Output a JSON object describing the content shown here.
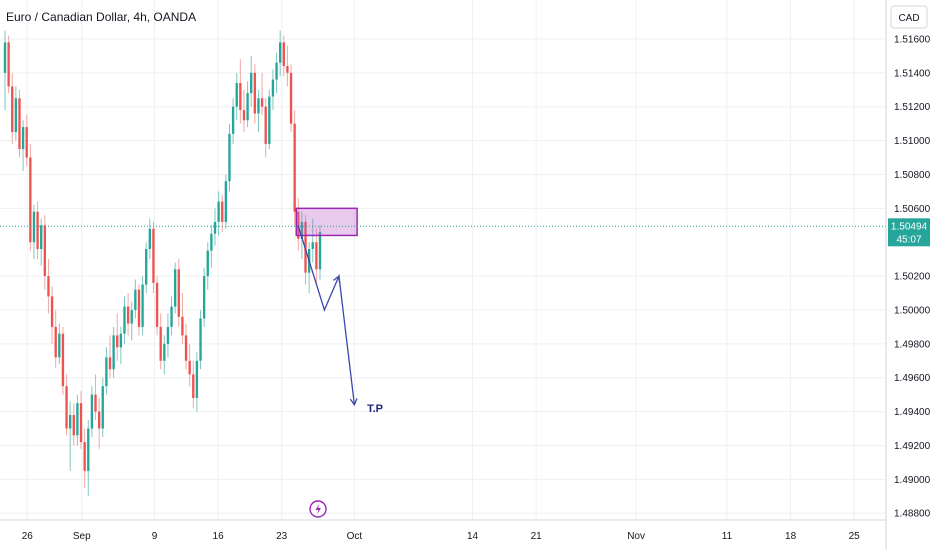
{
  "chart_data": {
    "type": "candlestick",
    "title": "Euro / Canadian Dollar, 4h, OANDA",
    "currency": "CAD",
    "x_ticks": [
      {
        "label": "26",
        "day": 26
      },
      {
        "label": "Sep",
        "day": 32
      },
      {
        "label": "9",
        "day": 40
      },
      {
        "label": "16",
        "day": 47
      },
      {
        "label": "23",
        "day": 54
      },
      {
        "label": "Oct",
        "day": 62
      },
      {
        "label": "14",
        "day": 75
      },
      {
        "label": "21",
        "day": 82
      },
      {
        "label": "Nov",
        "day": 93
      },
      {
        "label": "11",
        "day": 103
      },
      {
        "label": "18",
        "day": 110
      },
      {
        "label": "25",
        "day": 117
      }
    ],
    "y_ticks": [
      "1.51600",
      "1.51400",
      "1.51200",
      "1.51000",
      "1.50800",
      "1.50600",
      "1.50200",
      "1.50000",
      "1.49800",
      "1.49600",
      "1.49400",
      "1.49200",
      "1.49000",
      "1.48800"
    ],
    "ylim": [
      1.4876,
      1.5183
    ],
    "xlim_days": [
      23,
      120.5
    ],
    "current_price": {
      "value": "1.50494",
      "countdown": "45:07"
    },
    "colors": {
      "up": "#26a69a",
      "down": "#ef5350",
      "wick_up": "#7fc8bf",
      "wick_down": "#f2a7a5",
      "zone": "#9c27b0",
      "arrow": "#3949ab",
      "current": "#26a69a"
    },
    "price_path": [
      [
        1.514,
        1.5165,
        1.5118,
        1.5158
      ],
      [
        1.5158,
        1.5162,
        1.5128,
        1.5132
      ],
      [
        1.5132,
        1.514,
        1.5098,
        1.5105
      ],
      [
        1.5105,
        1.5132,
        1.51,
        1.5125
      ],
      [
        1.5125,
        1.513,
        1.509,
        1.5095
      ],
      [
        1.5095,
        1.5112,
        1.5082,
        1.5108
      ],
      [
        1.5108,
        1.5115,
        1.5085,
        1.509
      ],
      [
        1.509,
        1.5098,
        1.5035,
        1.504
      ],
      [
        1.504,
        1.5062,
        1.503,
        1.5058
      ],
      [
        1.5058,
        1.5064,
        1.503,
        1.5036
      ],
      [
        1.5036,
        1.5054,
        1.5026,
        1.505
      ],
      [
        1.505,
        1.5056,
        1.5012,
        1.502
      ],
      [
        1.502,
        1.503,
        1.4998,
        1.5008
      ],
      [
        1.5008,
        1.5014,
        1.498,
        1.499
      ],
      [
        1.499,
        1.5,
        1.4966,
        1.4972
      ],
      [
        1.4972,
        1.4992,
        1.4968,
        1.4986
      ],
      [
        1.4986,
        1.499,
        1.495,
        1.4955
      ],
      [
        1.4955,
        1.4962,
        1.4926,
        1.493
      ],
      [
        1.493,
        1.4946,
        1.4905,
        1.4938
      ],
      [
        1.4938,
        1.4945,
        1.492,
        1.4926
      ],
      [
        1.4926,
        1.495,
        1.492,
        1.4945
      ],
      [
        1.4945,
        1.4952,
        1.4918,
        1.4922
      ],
      [
        1.4922,
        1.493,
        1.4895,
        1.4905
      ],
      [
        1.4905,
        1.4935,
        1.489,
        1.493
      ],
      [
        1.493,
        1.4955,
        1.4925,
        1.495
      ],
      [
        1.495,
        1.4962,
        1.4935,
        1.494
      ],
      [
        1.494,
        1.4948,
        1.4918,
        1.493
      ],
      [
        1.493,
        1.496,
        1.4925,
        1.4955
      ],
      [
        1.4955,
        1.4978,
        1.495,
        1.4972
      ],
      [
        1.4972,
        1.4985,
        1.496,
        1.4965
      ],
      [
        1.4965,
        1.499,
        1.496,
        1.4985
      ],
      [
        1.4985,
        1.4998,
        1.497,
        1.4978
      ],
      [
        1.4978,
        1.499,
        1.4968,
        1.4986
      ],
      [
        1.4986,
        1.5008,
        1.498,
        1.5002
      ],
      [
        1.5002,
        1.501,
        1.4985,
        1.4992
      ],
      [
        1.4992,
        1.5005,
        1.4982,
        1.5
      ],
      [
        1.5,
        1.5018,
        1.4995,
        1.5012
      ],
      [
        1.5012,
        1.5015,
        1.4985,
        1.499
      ],
      [
        1.499,
        1.502,
        1.4985,
        1.5015
      ],
      [
        1.5015,
        1.504,
        1.501,
        1.5036
      ],
      [
        1.5036,
        1.5054,
        1.503,
        1.5048
      ],
      [
        1.5048,
        1.5052,
        1.501,
        1.5016
      ],
      [
        1.5016,
        1.502,
        1.4985,
        1.499
      ],
      [
        1.499,
        1.4998,
        1.4965,
        1.497
      ],
      [
        1.497,
        1.4985,
        1.4962,
        1.498
      ],
      [
        1.498,
        1.4998,
        1.4972,
        1.499
      ],
      [
        1.499,
        1.5008,
        1.4985,
        1.5002
      ],
      [
        1.5002,
        1.5028,
        1.4998,
        1.5024
      ],
      [
        1.5024,
        1.503,
        1.499,
        1.4996
      ],
      [
        1.4996,
        1.501,
        1.498,
        1.4985
      ],
      [
        1.4985,
        1.4992,
        1.4965,
        1.497
      ],
      [
        1.497,
        1.498,
        1.4955,
        1.4962
      ],
      [
        1.4962,
        1.497,
        1.4942,
        1.4948
      ],
      [
        1.4948,
        1.4975,
        1.494,
        1.497
      ],
      [
        1.497,
        1.5,
        1.4965,
        1.4995
      ],
      [
        1.4995,
        1.5025,
        1.499,
        1.502
      ],
      [
        1.502,
        1.504,
        1.5012,
        1.5035
      ],
      [
        1.5035,
        1.505,
        1.5025,
        1.5045
      ],
      [
        1.5045,
        1.506,
        1.5038,
        1.5052
      ],
      [
        1.5052,
        1.507,
        1.5044,
        1.5064
      ],
      [
        1.5064,
        1.5068,
        1.5046,
        1.5052
      ],
      [
        1.5052,
        1.508,
        1.5048,
        1.5076
      ],
      [
        1.5076,
        1.511,
        1.507,
        1.5104
      ],
      [
        1.5104,
        1.5125,
        1.5098,
        1.512
      ],
      [
        1.512,
        1.514,
        1.5112,
        1.5134
      ],
      [
        1.5134,
        1.5148,
        1.511,
        1.5118
      ],
      [
        1.5118,
        1.513,
        1.5105,
        1.5112
      ],
      [
        1.5112,
        1.5135,
        1.5108,
        1.5128
      ],
      [
        1.5128,
        1.515,
        1.512,
        1.514
      ],
      [
        1.514,
        1.5145,
        1.511,
        1.5116
      ],
      [
        1.5116,
        1.513,
        1.5105,
        1.5125
      ],
      [
        1.5125,
        1.514,
        1.5115,
        1.512
      ],
      [
        1.512,
        1.5125,
        1.509,
        1.5098
      ],
      [
        1.5098,
        1.513,
        1.5095,
        1.5126
      ],
      [
        1.5126,
        1.5142,
        1.5118,
        1.5136
      ],
      [
        1.5136,
        1.5152,
        1.5128,
        1.5146
      ],
      [
        1.5146,
        1.5165,
        1.5138,
        1.5158
      ],
      [
        1.5158,
        1.5162,
        1.5138,
        1.5144
      ],
      [
        1.5144,
        1.5156,
        1.5132,
        1.514
      ],
      [
        1.514,
        1.5145,
        1.5105,
        1.511
      ],
      [
        1.511,
        1.5118,
        1.505,
        1.5058
      ],
      [
        1.5058,
        1.5066,
        1.5035,
        1.5042
      ],
      [
        1.5042,
        1.5058,
        1.503,
        1.5052
      ],
      [
        1.5052,
        1.5056,
        1.5015,
        1.5022
      ],
      [
        1.5022,
        1.504,
        1.501,
        1.5036
      ],
      [
        1.5036,
        1.5054,
        1.5028,
        1.504
      ],
      [
        1.504,
        1.5048,
        1.5016,
        1.5024
      ],
      [
        1.5024,
        1.505,
        1.5018,
        1.5046
      ]
    ],
    "annotations": {
      "zone": {
        "day_start": 55.6,
        "day_end": 62.3,
        "price_high": 1.506,
        "price_low": 1.5044
      },
      "projection": [
        [
          55.8,
          1.505
        ],
        [
          58.7,
          1.5
        ],
        [
          60.3,
          1.502
        ],
        [
          62.0,
          1.4944
        ]
      ],
      "target_label": "T.P",
      "target_at": {
        "day": 63.4,
        "price": 1.4942
      }
    }
  }
}
